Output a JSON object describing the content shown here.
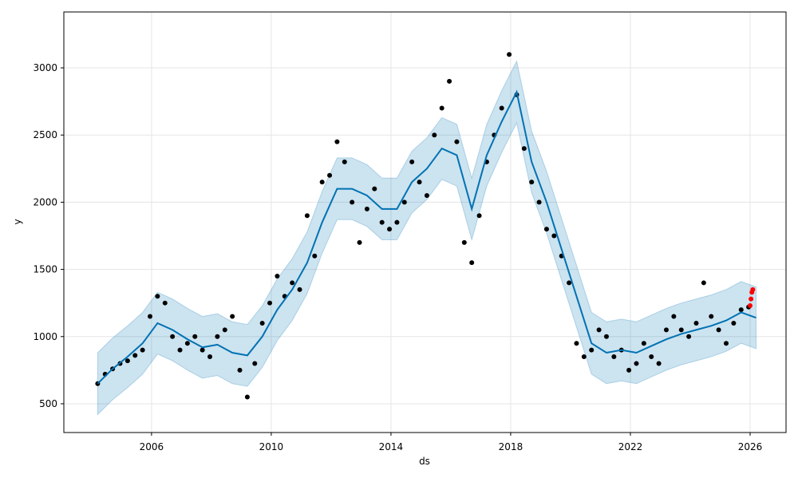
{
  "chart_data": {
    "type": "forecast",
    "xlabel": "ds",
    "ylabel": "y",
    "xlim": [
      2003.07,
      2027.2
    ],
    "xticks": [
      2006,
      2010,
      2014,
      2018,
      2022,
      2026
    ],
    "ylim": [
      286,
      3416
    ],
    "yticks": [
      500,
      1000,
      1500,
      2000,
      2500,
      3000
    ],
    "grid": true,
    "observed": {
      "color": "#000000",
      "x": [
        2004.2,
        2004.45,
        2004.7,
        2004.95,
        2005.2,
        2005.45,
        2005.7,
        2005.95,
        2006.2,
        2006.45,
        2006.7,
        2006.95,
        2007.2,
        2007.45,
        2007.7,
        2007.95,
        2008.2,
        2008.45,
        2008.7,
        2008.95,
        2009.2,
        2009.45,
        2009.7,
        2009.95,
        2010.2,
        2010.45,
        2010.7,
        2010.95,
        2011.2,
        2011.45,
        2011.7,
        2011.95,
        2012.2,
        2012.45,
        2012.7,
        2012.95,
        2013.2,
        2013.45,
        2013.7,
        2013.95,
        2014.2,
        2014.45,
        2014.7,
        2014.95,
        2015.2,
        2015.45,
        2015.7,
        2015.95,
        2016.2,
        2016.45,
        2016.7,
        2016.95,
        2017.2,
        2017.45,
        2017.7,
        2017.95,
        2018.2,
        2018.45,
        2018.7,
        2018.95,
        2019.2,
        2019.45,
        2019.7,
        2019.95,
        2020.2,
        2020.45,
        2020.7,
        2020.95,
        2021.2,
        2021.45,
        2021.7,
        2021.95,
        2022.2,
        2022.45,
        2022.7,
        2022.95,
        2023.2,
        2023.45,
        2023.7,
        2023.95,
        2024.2,
        2024.45,
        2024.7,
        2024.95,
        2025.2,
        2025.45,
        2025.7,
        2025.95
      ],
      "values": [
        650,
        720,
        760,
        800,
        820,
        860,
        900,
        1150,
        1300,
        1250,
        1000,
        900,
        950,
        1000,
        900,
        850,
        1000,
        1050,
        1150,
        750,
        550,
        800,
        1100,
        1250,
        1450,
        1300,
        1400,
        1350,
        1900,
        1600,
        2150,
        2200,
        2450,
        2300,
        2000,
        1700,
        1950,
        2100,
        1850,
        1800,
        1850,
        2000,
        2300,
        2150,
        2050,
        2500,
        2700,
        2900,
        2450,
        1700,
        1550,
        1900,
        2300,
        2500,
        2700,
        3100,
        2800,
        2400,
        2150,
        2000,
        1800,
        1750,
        1600,
        1400,
        950,
        850,
        900,
        1050,
        1000,
        850,
        900,
        750,
        800,
        950,
        850,
        800,
        1050,
        1150,
        1050,
        1000,
        1100,
        1400,
        1150,
        1050,
        950,
        1100,
        1200,
        1220
      ]
    },
    "recent": {
      "color": "#ff0000",
      "x": [
        2026.0,
        2026.03,
        2026.06,
        2026.09
      ],
      "values": [
        1230,
        1280,
        1330,
        1350
      ]
    },
    "trend": {
      "color": "#0072b2",
      "x": [
        2004.2,
        2004.7,
        2005.2,
        2005.7,
        2006.2,
        2006.7,
        2007.2,
        2007.7,
        2008.2,
        2008.7,
        2009.2,
        2009.7,
        2010.2,
        2010.7,
        2011.2,
        2011.7,
        2012.2,
        2012.7,
        2013.2,
        2013.7,
        2014.2,
        2014.7,
        2015.2,
        2015.7,
        2016.2,
        2016.7,
        2017.2,
        2017.7,
        2018.2,
        2018.7,
        2019.2,
        2019.7,
        2020.2,
        2020.7,
        2021.2,
        2021.7,
        2022.2,
        2022.7,
        2023.2,
        2023.7,
        2024.2,
        2024.7,
        2025.2,
        2025.7,
        2026.2
      ],
      "values": [
        650,
        760,
        850,
        950,
        1100,
        1050,
        980,
        920,
        940,
        880,
        860,
        1000,
        1200,
        1350,
        1550,
        1850,
        2100,
        2100,
        2050,
        1950,
        1950,
        2150,
        2250,
        2400,
        2350,
        1950,
        2350,
        2600,
        2820,
        2300,
        2000,
        1650,
        1300,
        950,
        880,
        900,
        880,
        930,
        980,
        1020,
        1050,
        1080,
        1120,
        1180,
        1140
      ],
      "upper": [
        880,
        990,
        1080,
        1180,
        1330,
        1280,
        1210,
        1150,
        1170,
        1110,
        1090,
        1230,
        1430,
        1580,
        1780,
        2080,
        2330,
        2330,
        2280,
        2180,
        2180,
        2380,
        2480,
        2630,
        2580,
        2180,
        2580,
        2830,
        3050,
        2530,
        2230,
        1880,
        1530,
        1180,
        1110,
        1130,
        1110,
        1160,
        1210,
        1250,
        1280,
        1310,
        1350,
        1410,
        1370
      ],
      "lower": [
        420,
        530,
        620,
        720,
        870,
        820,
        750,
        690,
        710,
        650,
        630,
        770,
        970,
        1120,
        1320,
        1620,
        1870,
        1870,
        1820,
        1720,
        1720,
        1920,
        2020,
        2170,
        2120,
        1720,
        2120,
        2370,
        2590,
        2070,
        1770,
        1420,
        1070,
        720,
        650,
        670,
        650,
        700,
        750,
        790,
        820,
        850,
        890,
        950,
        910
      ]
    }
  }
}
